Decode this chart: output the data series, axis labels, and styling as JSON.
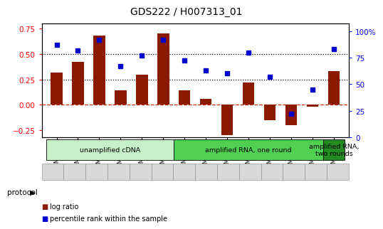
{
  "title": "GDS222 / H007313_01",
  "categories": [
    "GSM4848",
    "GSM4849",
    "GSM4850",
    "GSM4851",
    "GSM4852",
    "GSM4853",
    "GSM4854",
    "GSM4855",
    "GSM4856",
    "GSM4857",
    "GSM4858",
    "GSM4859",
    "GSM4860",
    "GSM4861"
  ],
  "log_ratio": [
    0.32,
    0.42,
    0.68,
    0.14,
    0.3,
    0.7,
    0.14,
    0.06,
    -0.3,
    0.22,
    -0.15,
    -0.2,
    -0.02,
    0.33
  ],
  "percentile_rank": [
    87,
    82,
    92,
    67,
    77,
    92,
    72,
    63,
    60,
    80,
    57,
    22,
    45,
    83
  ],
  "ylim_left": [
    -0.32,
    0.8
  ],
  "ylim_right": [
    0,
    107
  ],
  "yticks_left": [
    -0.25,
    0,
    0.25,
    0.5,
    0.75
  ],
  "yticks_right": [
    0,
    25,
    50,
    75,
    100
  ],
  "ytick_labels_right": [
    "0",
    "25",
    "50",
    "75",
    "100%"
  ],
  "hlines": [
    0.25,
    0.5
  ],
  "bar_color": "#8B1a00",
  "scatter_color": "#0000cc",
  "zero_line_color": "#cc2200",
  "background_color": "#ffffff",
  "protocol_groups": [
    {
      "label": "unamplified cDNA",
      "start": 0,
      "end": 5,
      "color": "#c8f0c8"
    },
    {
      "label": "amplified RNA, one round",
      "start": 6,
      "end": 12,
      "color": "#50d050"
    },
    {
      "label": "amplified RNA,\ntwo rounds",
      "start": 13,
      "end": 13,
      "color": "#228B22"
    }
  ],
  "legend_items": [
    {
      "label": "log ratio",
      "color": "#8B1a00"
    },
    {
      "label": "percentile rank within the sample",
      "color": "#0000cc"
    }
  ]
}
